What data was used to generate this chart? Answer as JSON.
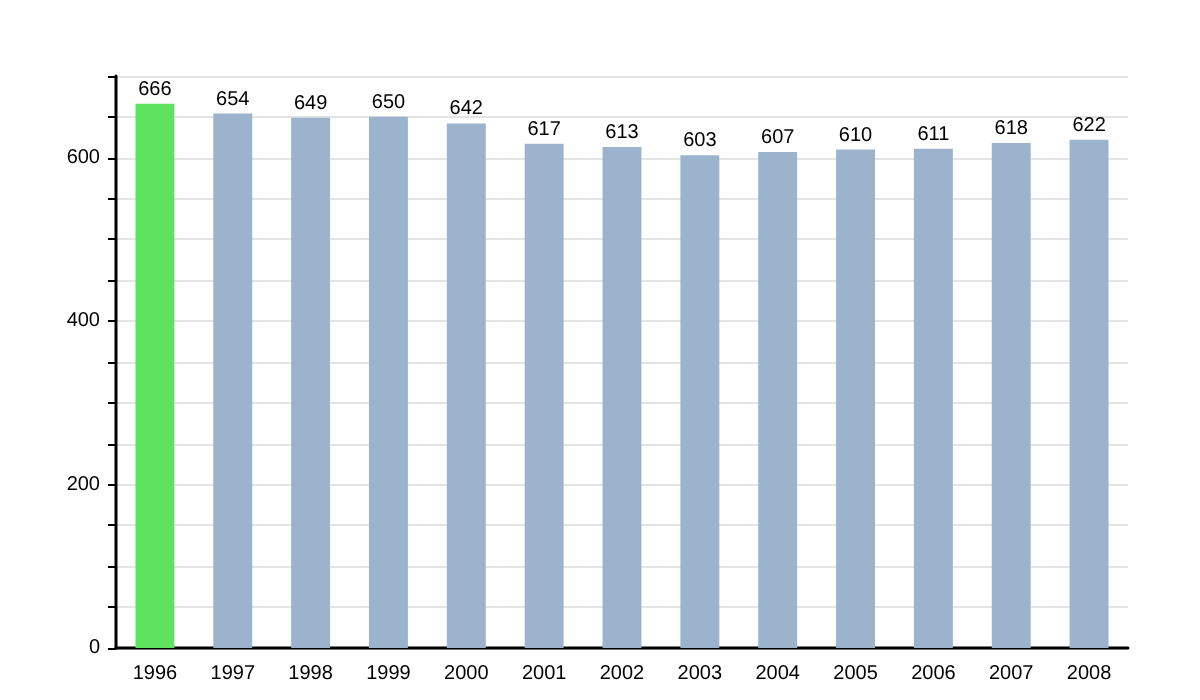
{
  "chart_data": {
    "type": "bar",
    "categories": [
      "1996",
      "1997",
      "1998",
      "1999",
      "2000",
      "2001",
      "2002",
      "2003",
      "2004",
      "2005",
      "2006",
      "2007",
      "2008"
    ],
    "values": [
      666,
      654,
      649,
      650,
      642,
      617,
      613,
      603,
      607,
      610,
      611,
      618,
      622
    ],
    "colors": [
      "#5fe35f",
      "#9bb3cc",
      "#9bb3cc",
      "#9bb3cc",
      "#9bb3cc",
      "#9bb3cc",
      "#9bb3cc",
      "#9bb3cc",
      "#9bb3cc",
      "#9bb3cc",
      "#9bb3cc",
      "#9bb3cc",
      "#9bb3cc"
    ],
    "data_labels": true,
    "ylim": [
      0,
      700
    ],
    "yticks": [
      0,
      {
        "value": 50,
        "label": null
      },
      {
        "value": 100,
        "label": null
      },
      {
        "value": 150,
        "label": null
      },
      200,
      {
        "value": 250,
        "label": null
      },
      {
        "value": 300,
        "label": null
      },
      {
        "value": 350,
        "label": null
      },
      400,
      {
        "value": 450,
        "label": null
      },
      {
        "value": 500,
        "label": null
      },
      {
        "value": 550,
        "label": null
      },
      600,
      {
        "value": 650,
        "label": null
      },
      {
        "value": 700,
        "label": null
      }
    ],
    "grid": "y"
  }
}
